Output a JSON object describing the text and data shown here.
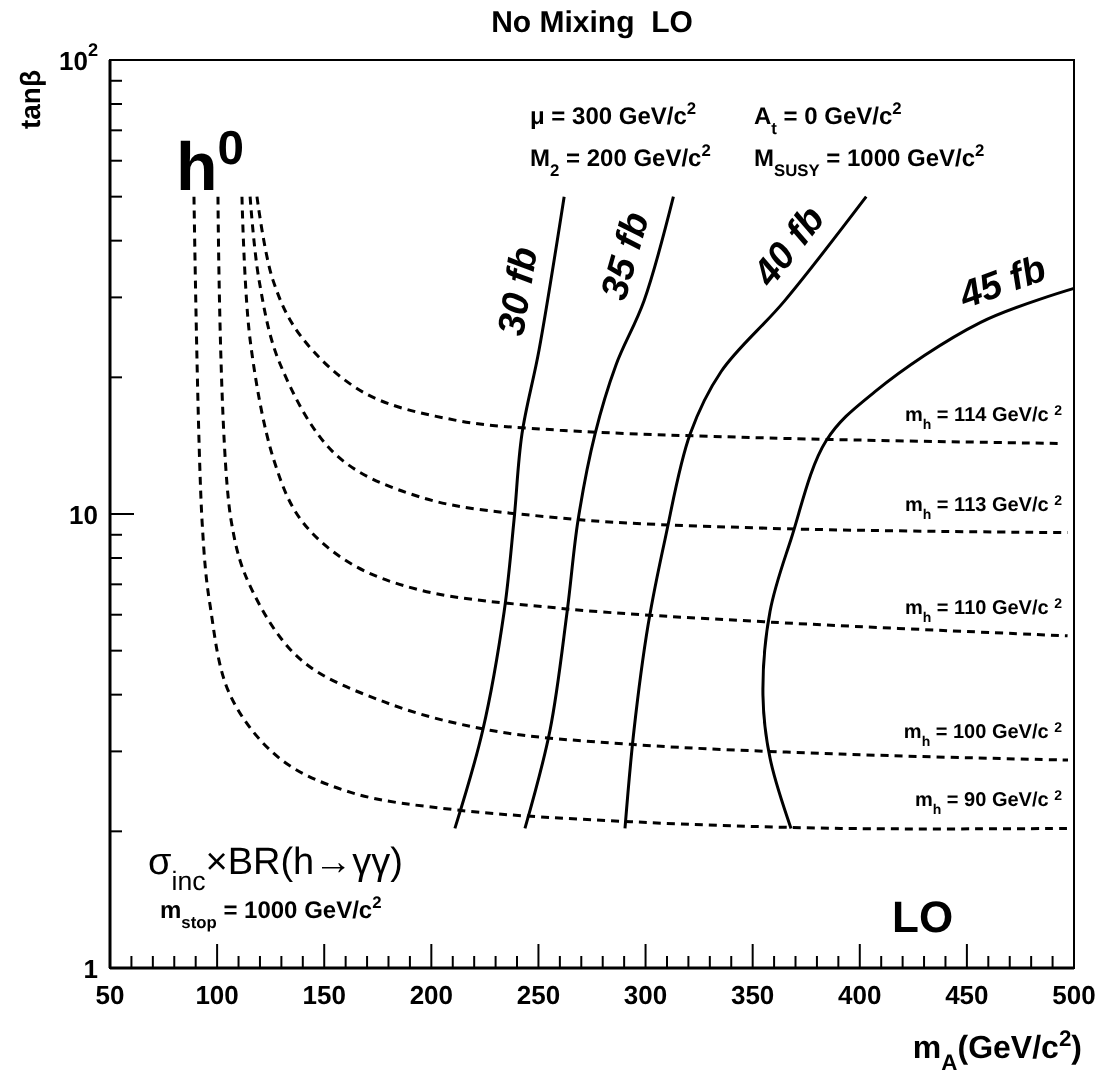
{
  "chart_data": {
    "type": "line",
    "title": "No Mixing  LO",
    "xlabel": "m$_{A}$(GeV/c$^{2}$)",
    "ylabel": "tanβ",
    "log": "y",
    "xlim": [
      50,
      500
    ],
    "ylim": [
      1,
      100
    ],
    "xticks": [
      50,
      {
        "value": 60,
        "label": null
      },
      {
        "value": 70,
        "label": null
      },
      {
        "value": 80,
        "label": null
      },
      {
        "value": 90,
        "label": null
      },
      100,
      {
        "value": 110,
        "label": null
      },
      {
        "value": 120,
        "label": null
      },
      {
        "value": 130,
        "label": null
      },
      {
        "value": 140,
        "label": null
      },
      150,
      {
        "value": 160,
        "label": null
      },
      {
        "value": 170,
        "label": null
      },
      {
        "value": 180,
        "label": null
      },
      {
        "value": 190,
        "label": null
      },
      200,
      {
        "value": 210,
        "label": null
      },
      {
        "value": 220,
        "label": null
      },
      {
        "value": 230,
        "label": null
      },
      {
        "value": 240,
        "label": null
      },
      250,
      {
        "value": 260,
        "label": null
      },
      {
        "value": 270,
        "label": null
      },
      {
        "value": 280,
        "label": null
      },
      {
        "value": 290,
        "label": null
      },
      300,
      {
        "value": 310,
        "label": null
      },
      {
        "value": 320,
        "label": null
      },
      {
        "value": 330,
        "label": null
      },
      {
        "value": 340,
        "label": null
      },
      350,
      {
        "value": 360,
        "label": null
      },
      {
        "value": 370,
        "label": null
      },
      {
        "value": 380,
        "label": null
      },
      {
        "value": 390,
        "label": null
      },
      400,
      {
        "value": 410,
        "label": null
      },
      {
        "value": 420,
        "label": null
      },
      {
        "value": 430,
        "label": null
      },
      {
        "value": 440,
        "label": null
      },
      450,
      {
        "value": 460,
        "label": null
      },
      {
        "value": 470,
        "label": null
      },
      {
        "value": 480,
        "label": null
      },
      {
        "value": 490,
        "label": null
      },
      500
    ],
    "yticks": [
      1,
      {
        "value": 2,
        "label": null
      },
      {
        "value": 3,
        "label": null
      },
      {
        "value": 4,
        "label": null
      },
      {
        "value": 5,
        "label": null
      },
      {
        "value": 6,
        "label": null
      },
      {
        "value": 7,
        "label": null
      },
      {
        "value": 8,
        "label": null
      },
      {
        "value": 9,
        "label": null
      },
      10,
      {
        "value": 20,
        "label": null
      },
      {
        "value": 30,
        "label": null
      },
      {
        "value": 40,
        "label": null
      },
      {
        "value": 50,
        "label": null
      },
      {
        "value": 60,
        "label": null
      },
      {
        "value": 70,
        "label": null
      },
      {
        "value": 80,
        "label": null
      },
      {
        "value": 90,
        "label": null
      },
      {
        "value": 100,
        "label": "10$^{2}$"
      }
    ],
    "series": [
      {
        "name": "m$_{h}$ = 90 GeV/c $^{2}$",
        "color": "#000000",
        "line_style": "dashed",
        "x": [
          89.2,
          93,
          96.7,
          106,
          129,
          162,
          211.5,
          293,
          391,
          497
        ],
        "values": [
          50,
          9.6,
          6.3,
          4.0,
          2.9,
          2.44,
          2.23,
          2.1,
          2.03,
          2.03
        ]
      },
      {
        "name": "m$_{h}$ = 100 GeV/c $^{2}$",
        "color": "#000000",
        "line_style": "dashed",
        "x": [
          100.4,
          106.5,
          116.3,
          139.2,
          178.4,
          227.4,
          292.8,
          390.8,
          497.2
        ],
        "values": [
          50,
          9.7,
          6.8,
          4.77,
          3.85,
          3.34,
          3.11,
          2.96,
          2.87
        ]
      },
      {
        "name": "m$_{h}$ = 110 GeV/c $^{2}$",
        "color": "#000000",
        "line_style": "dashed",
        "x": [
          111.6,
          115.4,
          126.6,
          139.2,
          162,
          194.7,
          260,
          358,
          497
        ],
        "values": [
          50,
          24.2,
          13.1,
          9.7,
          7.8,
          6.8,
          6.2,
          5.78,
          5.39
        ]
      },
      {
        "name": "m$_{h}$ = 113 GeV/c $^{2}$",
        "color": "#000000",
        "line_style": "dashed",
        "x": [
          115.4,
          119.6,
          129.4,
          155.5,
          194.7,
          260,
          358,
          497
        ],
        "values": [
          50,
          32.7,
          21.4,
          13.5,
          10.9,
          9.8,
          9.3,
          9.1
        ]
      },
      {
        "name": "m$_{h}$ = 114 GeV/c $^{2}$",
        "color": "#000000",
        "line_style": "dashed",
        "x": [
          118.6,
          126.1,
          139.2,
          168.6,
          211,
          260,
          358,
          493.5
        ],
        "values": [
          50,
          32.7,
          24.6,
          18.5,
          16.1,
          15.3,
          14.7,
          14.3
        ]
      },
      {
        "name": "30 fb",
        "color": "#000000",
        "line_style": "solid",
        "x": [
          262,
          250.3,
          242.3,
          238.6,
          234,
          224,
          211
        ],
        "values": [
          50,
          23,
          15,
          9.7,
          6.1,
          3.34,
          2.03
        ]
      },
      {
        "name": "35 fb",
        "color": "#000000",
        "line_style": "solid",
        "x": [
          313,
          299.3,
          286.2,
          276.4,
          268.5,
          263.4,
          255.4,
          243.7
        ],
        "values": [
          50,
          29.5,
          21.3,
          15,
          9.7,
          6.1,
          3.34,
          2.03
        ]
      },
      {
        "name": "40 fb",
        "color": "#000000",
        "line_style": "solid",
        "x": [
          403,
          364.7,
          335.3,
          320.8,
          309.1,
          301.2,
          294.6,
          290.4
        ],
        "values": [
          50,
          29.4,
          20.6,
          15,
          8.8,
          5.7,
          3.34,
          2.03
        ]
      },
      {
        "name": "45 fb",
        "color": "#000000",
        "line_style": "solid",
        "x": [
          500,
          456.2,
          407.1,
          384.3,
          367.9,
          358.1,
          354.8,
          358.1,
          367.9
        ],
        "values": [
          31.4,
          26.4,
          18.6,
          14.5,
          8.8,
          6.1,
          3.99,
          2.9,
          2.03
        ]
      }
    ],
    "annotations": [
      "h$^{0}$",
      "μ = 300 GeV/c$^{2}$",
      "A$_{t}$ = 0 GeV/c$^{2}$",
      "M$_{2}$ = 200 GeV/c$^{2}$",
      "M$_{SUSY}$ = 1000 GeV/c$^{2}$",
      "σ$_{inc}$×BR(h→γγ)",
      "m$_{stop}$ = 1000 GeV/c$^{2}$",
      "LO"
    ]
  }
}
